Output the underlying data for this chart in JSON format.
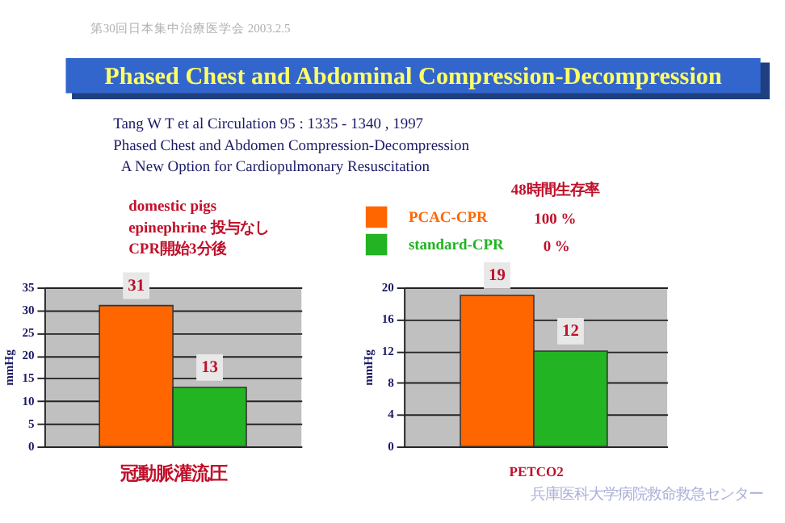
{
  "chart_data": [
    {
      "type": "bar",
      "title": "Phased Chest and Abdominal  Compression-Decompression",
      "xlabel": "冠動脈灌流圧",
      "ylabel": "mmHg",
      "legend_title": "48時間生存率",
      "legend": "top",
      "annotations": [
        "第30回日本集中治療医学会  2003.2.5",
        "Tang  W T et al    Circulation 95 : 1335 - 1340 , 1997",
        "Phased Chest and Abdomen  Compression-Decompression",
        "A New Option for Cardiopulmonary Resuscitation",
        "domestic pigs",
        "epinephrine 投与なし",
        "CPR開始3分後",
        "100 %",
        "0 %"
      ],
      "categories": [
        null
      ],
      "series": [
        {
          "name": "PCAC-CPR",
          "color": "#ff6600",
          "values": [
            31
          ]
        },
        {
          "name": "standard-CPR",
          "color": "#22b422",
          "values": [
            13
          ]
        }
      ],
      "ylim": [
        0,
        35
      ],
      "yticks": [
        0,
        5,
        10,
        15,
        20,
        25,
        30,
        35
      ],
      "grid": "y",
      "data_labels": true,
      "tick_labels": "y"
    },
    {
      "type": "bar",
      "xlabel": "PETCO2",
      "ylabel": "mmHg",
      "annotations": [
        "兵庫医科大学病院救命救急センター"
      ],
      "categories": [
        null
      ],
      "series": [
        {
          "name": "PCAC-CPR",
          "color": "#ff6600",
          "values": [
            19
          ]
        },
        {
          "name": "standard-CPR",
          "color": "#22b422",
          "values": [
            12
          ]
        }
      ],
      "ylim": [
        0,
        20
      ],
      "yticks": [
        0,
        4,
        8,
        12,
        16,
        20
      ],
      "grid": "y",
      "data_labels": true,
      "tick_labels": "y"
    }
  ]
}
